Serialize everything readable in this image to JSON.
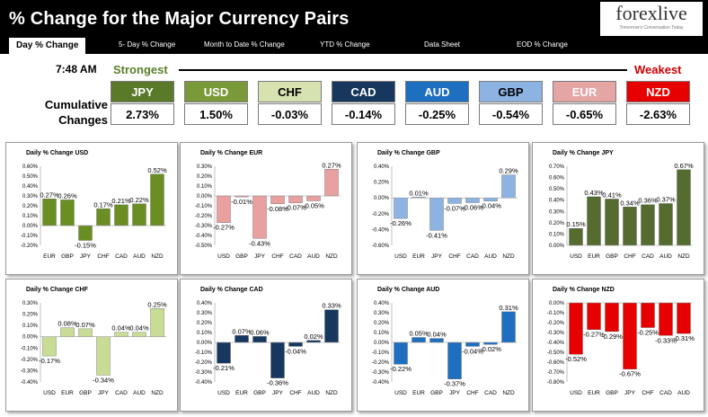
{
  "header": {
    "title": "% Change for the Major Currency Pairs"
  },
  "logo": {
    "name": "forexlive",
    "tagline": "Tomorrow's Conversation Today"
  },
  "tabs": [
    {
      "label": "Day % Change"
    },
    {
      "label": "5- Day % Change"
    },
    {
      "label": "Month to Date % Change"
    },
    {
      "label": "YTD % Change"
    },
    {
      "label": "Data Sheet"
    },
    {
      "label": "EOD % Change"
    }
  ],
  "summary": {
    "time": "7:48 AM",
    "strongest_label": "Strongest",
    "weakest_label": "Weakest",
    "cumulative_label_1": "Cumulative",
    "cumulative_label_2": "Changes",
    "currencies": [
      {
        "code": "JPY",
        "value": "2.73%",
        "bg": "#5a7a2a",
        "fg": "#ffffff"
      },
      {
        "code": "USD",
        "value": "1.50%",
        "bg": "#7a9a3a",
        "fg": "#ffffff"
      },
      {
        "code": "CHF",
        "value": "-0.03%",
        "bg": "#d6e3b0",
        "fg": "#000000"
      },
      {
        "code": "CAD",
        "value": "-0.14%",
        "bg": "#17375e",
        "fg": "#ffffff"
      },
      {
        "code": "AUD",
        "value": "-0.25%",
        "bg": "#1f6fc0",
        "fg": "#ffffff"
      },
      {
        "code": "GBP",
        "value": "-0.54%",
        "bg": "#8db3e2",
        "fg": "#000000"
      },
      {
        "code": "EUR",
        "value": "-0.65%",
        "bg": "#e6a5a5",
        "fg": "#ffffff"
      },
      {
        "code": "NZD",
        "value": "-2.63%",
        "bg": "#e60000",
        "fg": "#ffffff"
      }
    ]
  },
  "chart_data": [
    {
      "type": "bar",
      "title": "Daily % Change USD",
      "categories": [
        "EUR",
        "GBP",
        "JPY",
        "CHF",
        "CAD",
        "AUD",
        "NZD"
      ],
      "values": [
        0.27,
        0.26,
        -0.15,
        0.17,
        0.21,
        0.22,
        0.52
      ],
      "labels": [
        "0.27%",
        "0.26%",
        "-0.15%",
        "0.17%",
        "0.21%",
        "0.22%",
        "0.52%"
      ],
      "yticks": [
        "0.60%",
        "0.50%",
        "0.40%",
        "0.30%",
        "0.20%",
        "0.10%",
        "0.00%",
        "-0.10%",
        "-0.20%"
      ],
      "ylim": [
        -0.2,
        0.6
      ],
      "color": "#6b8e23"
    },
    {
      "type": "bar",
      "title": "Daily % Change EUR",
      "categories": [
        "USD",
        "GBP",
        "JPY",
        "CHF",
        "CAD",
        "AUD",
        "NZD"
      ],
      "values": [
        -0.27,
        -0.01,
        -0.43,
        -0.08,
        -0.07,
        -0.05,
        0.27
      ],
      "labels": [
        "-0.27%",
        "-0.01%",
        "-0.43%",
        "-0.08%",
        "-0.07%",
        "-0.05%",
        "0.27%"
      ],
      "yticks": [
        "0.30%",
        "0.20%",
        "0.10%",
        "0.00%",
        "-0.10%",
        "-0.20%",
        "-0.30%",
        "-0.40%",
        "-0.50%"
      ],
      "ylim": [
        -0.5,
        0.3
      ],
      "color": "#e8a0a0"
    },
    {
      "type": "bar",
      "title": "Daily % Change GBP",
      "categories": [
        "USD",
        "EUR",
        "JPY",
        "CHF",
        "CAD",
        "AUD",
        "NZD"
      ],
      "values": [
        -0.26,
        0.01,
        -0.41,
        -0.07,
        -0.06,
        -0.04,
        0.29
      ],
      "labels": [
        "-0.26%",
        "0.01%",
        "-0.41%",
        "-0.07%",
        "-0.06%",
        "-0.04%",
        "0.29%"
      ],
      "yticks": [
        "0.40%",
        "0.20%",
        "0.00%",
        "-0.20%",
        "-0.40%",
        "-0.60%"
      ],
      "ylim": [
        -0.6,
        0.4
      ],
      "color": "#8db3e2"
    },
    {
      "type": "bar",
      "title": "Daily % Change JPY",
      "categories": [
        "USD",
        "EUR",
        "GBP",
        "CHF",
        "CAD",
        "AUD",
        "NZD"
      ],
      "values": [
        0.15,
        0.43,
        0.41,
        0.34,
        0.36,
        0.37,
        0.67
      ],
      "labels": [
        "0.15%",
        "0.43%",
        "0.41%",
        "0.34%",
        "0.36%",
        "0.37%",
        "0.67%"
      ],
      "yticks": [
        "0.70%",
        "0.60%",
        "0.50%",
        "0.40%",
        "0.30%",
        "0.20%",
        "0.10%",
        "0.00%"
      ],
      "ylim": [
        0,
        0.7
      ],
      "color": "#556b2f"
    },
    {
      "type": "bar",
      "title": "Daily % Change CHF",
      "categories": [
        "USD",
        "EUR",
        "GBP",
        "JPY",
        "CAD",
        "AUD",
        "NZD"
      ],
      "values": [
        -0.17,
        0.08,
        0.07,
        -0.34,
        0.04,
        0.04,
        0.25
      ],
      "labels": [
        "-0.17%",
        "0.08%",
        "0.07%",
        "-0.34%",
        "0.04%",
        "0.04%",
        "0.25%"
      ],
      "yticks": [
        "0.30%",
        "0.20%",
        "0.10%",
        "0.00%",
        "-0.10%",
        "-0.20%",
        "-0.30%",
        "-0.40%"
      ],
      "ylim": [
        -0.4,
        0.3
      ],
      "color": "#c8dc96"
    },
    {
      "type": "bar",
      "title": "Daily % Change CAD",
      "categories": [
        "USD",
        "EUR",
        "GBP",
        "JPY",
        "CHF",
        "AUD",
        "NZD"
      ],
      "values": [
        -0.21,
        0.07,
        0.06,
        -0.36,
        -0.04,
        0.02,
        0.33
      ],
      "labels": [
        "-0.21%",
        "0.07%",
        "0.06%",
        "-0.36%",
        "-0.04%",
        "0.02%",
        "0.33%"
      ],
      "yticks": [
        "0.40%",
        "0.30%",
        "0.20%",
        "0.10%",
        "0.00%",
        "-0.10%",
        "-0.20%",
        "-0.30%",
        "-0.40%"
      ],
      "ylim": [
        -0.4,
        0.4
      ],
      "color": "#17375e"
    },
    {
      "type": "bar",
      "title": "Daily % Change AUD",
      "categories": [
        "USD",
        "EUR",
        "GBP",
        "JPY",
        "CHF",
        "CAD",
        "NZD"
      ],
      "values": [
        -0.22,
        0.05,
        0.04,
        -0.37,
        -0.04,
        -0.02,
        0.31
      ],
      "labels": [
        "-0.22%",
        "0.05%",
        "0.04%",
        "-0.37%",
        "-0.04%",
        "-0.02%",
        "0.31%"
      ],
      "yticks": [
        "0.40%",
        "0.30%",
        "0.20%",
        "0.10%",
        "0.00%",
        "-0.10%",
        "-0.20%",
        "-0.30%",
        "-0.40%"
      ],
      "ylim": [
        -0.4,
        0.4
      ],
      "color": "#1f6fc0"
    },
    {
      "type": "bar",
      "title": "Daily % Change NZD",
      "categories": [
        "USD",
        "EUR",
        "GBP",
        "JPY",
        "CHF",
        "CAD",
        "AUD"
      ],
      "values": [
        -0.52,
        -0.27,
        -0.29,
        -0.67,
        -0.25,
        -0.33,
        -0.31
      ],
      "labels": [
        "-0.52%",
        "-0.27%",
        "-0.29%",
        "-0.67%",
        "-0.25%",
        "-0.33%",
        "-0.31%"
      ],
      "yticks": [
        "0.00%",
        "-0.10%",
        "-0.20%",
        "-0.30%",
        "-0.40%",
        "-0.50%",
        "-0.60%",
        "-0.70%",
        "-0.80%"
      ],
      "ylim": [
        -0.8,
        0
      ],
      "color": "#e60000"
    }
  ]
}
